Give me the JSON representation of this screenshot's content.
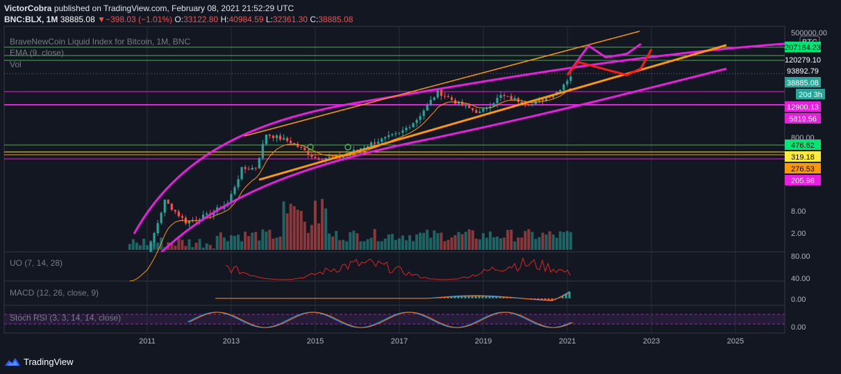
{
  "header": {
    "author": "VictorCobra",
    "published": "published on TradingView.com, February 08, 2021 21:52:29 UTC",
    "symbol": "BNC:BLX, 1M",
    "last": "38885.08",
    "change": "−398.03 (−1.01%)",
    "o_label": "O:",
    "o": "33122.80",
    "h_label": "H:",
    "h": "40984.59",
    "l_label": "L:",
    "l": "32361.30",
    "c_label": "C:",
    "c": "38885.08"
  },
  "legend": {
    "title": "BraveNewCoin Liquid Index for Bitcoin, 1M, BNC",
    "ema": "EMA (9, close)",
    "vol": "Vol",
    "uo": "UO (7, 14, 28)",
    "macd": "MACD (12, 26, close, 9)",
    "stoch": "Stoch RSI (3, 3, 14, 14, close)"
  },
  "footer": {
    "brand": "TradingView"
  },
  "colors": {
    "background": "#131722",
    "grid": "#2a2e39",
    "up": "#26a69a",
    "down": "#ef5350",
    "magenta": "#e91ee0",
    "orange": "#ff9800",
    "red": "#ff1a1a",
    "green_hline": "#4caf50",
    "violet_hline": "#9c27b0"
  },
  "chart_data": {
    "type": "candlestick",
    "title": "BraveNewCoin Liquid Index for Bitcoin, 1M, BNC",
    "y_scale": "log",
    "x_ticks": [
      "2011",
      "2013",
      "2015",
      "2017",
      "2019",
      "2021",
      "2023",
      "2025"
    ],
    "price_ticks": [
      "500000.00",
      "800.00",
      "8.00",
      "2.00"
    ],
    "price_labels": [
      {
        "text": "BTC",
        "bg": "#131722",
        "fg": "#d1d4dc",
        "border": "#787b86"
      },
      {
        "text": "207184.23",
        "bg": "#00e676",
        "fg": "#000000"
      },
      {
        "text": "120279.10",
        "bg": "#131722",
        "fg": "#ffffff"
      },
      {
        "text": "93892.79",
        "bg": "#131722",
        "fg": "#ffffff"
      },
      {
        "text": "38885.08",
        "bg": "#26a69a",
        "fg": "#ffffff"
      },
      {
        "text": "20d 3h",
        "bg": "#26a69a",
        "fg": "#ffffff"
      },
      {
        "text": "12900.13",
        "bg": "#e91ee0",
        "fg": "#ffffff"
      },
      {
        "text": "5819.56",
        "bg": "#e91ee0",
        "fg": "#ffffff"
      },
      {
        "text": "476.62",
        "bg": "#00e676",
        "fg": "#000000"
      },
      {
        "text": "319.18",
        "bg": "#ffeb3b",
        "fg": "#000000"
      },
      {
        "text": "276.53",
        "bg": "#ff9800",
        "fg": "#000000"
      },
      {
        "text": "205.98",
        "bg": "#e91ee0",
        "fg": "#ffffff"
      }
    ],
    "uo_ticks": [
      "80.00",
      "40.00"
    ],
    "macd_ticks": [
      "0.00"
    ],
    "stoch_ticks": [
      "0.00"
    ],
    "price_path": [
      [
        "2010-07",
        0.07
      ],
      [
        "2011-01",
        0.5
      ],
      [
        "2011-06",
        15
      ],
      [
        "2011-12",
        4
      ],
      [
        "2012-06",
        6
      ],
      [
        "2012-12",
        13
      ],
      [
        "2013-04",
        110
      ],
      [
        "2013-08",
        120
      ],
      [
        "2013-11",
        1000
      ],
      [
        "2014-06",
        600
      ],
      [
        "2015-01",
        220
      ],
      [
        "2015-08",
        230
      ],
      [
        "2016-06",
        600
      ],
      [
        "2017-01",
        1000
      ],
      [
        "2017-06",
        2500
      ],
      [
        "2017-12",
        14000
      ],
      [
        "2018-06",
        6500
      ],
      [
        "2018-12",
        3700
      ],
      [
        "2019-06",
        10800
      ],
      [
        "2020-03",
        6400
      ],
      [
        "2020-10",
        13800
      ],
      [
        "2021-02",
        38885
      ]
    ],
    "projections": [
      {
        "name": "",
        "color": "#e91ee0",
        "points": [
          [
            "2021-01",
            40000
          ],
          [
            "2021-07",
            250000
          ],
          [
            "2021-12",
            120000
          ],
          [
            "2022-06",
            150000
          ],
          [
            "2022-10",
            280000
          ]
        ]
      },
      {
        "name": "",
        "color": "#ff1a1a",
        "points": [
          [
            "2021-01",
            40000
          ],
          [
            "2021-04",
            90000
          ],
          [
            "2022-02",
            50000
          ],
          [
            "2022-06",
            40000
          ],
          [
            "2022-10",
            60000
          ],
          [
            "2023-01",
            200000
          ]
        ]
      }
    ]
  }
}
